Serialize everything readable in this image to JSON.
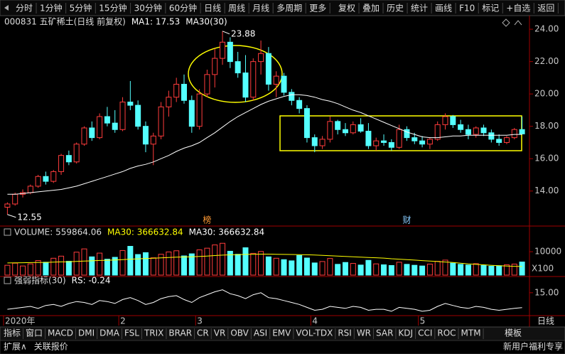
{
  "toolbar": {
    "left": [
      "分时",
      "1分钟",
      "5分钟",
      "15分钟",
      "30分钟",
      "60分钟",
      "日线",
      "周线",
      "月线",
      "多周期",
      "更多"
    ],
    "right": [
      "复权",
      "叠加",
      "历史",
      "统计",
      "画线",
      "F10",
      "标记",
      "+自选",
      "返回"
    ]
  },
  "tabs": [
    "指标",
    "窗口",
    "MACD",
    "DMI",
    "DMA",
    "FSL",
    "TRIX",
    "BRAR",
    "CR",
    "VR",
    "OBV",
    "ASI",
    "EMV",
    "VOL-TDX",
    "RSI",
    "WR",
    "SAR",
    "KDJ",
    "CCI",
    "ROC",
    "MTM"
  ],
  "tab_right": "模板",
  "period": "日线",
  "status": {
    "left": [
      "扩展∧",
      "关联报价"
    ],
    "right": "新用户福利专享"
  },
  "chart_data": [
    {
      "type": "candlestick",
      "title": "000831 五矿稀土(日线 前复权)",
      "annotations": [
        "MA1: 17.53"
      ],
      "up_color": "#ff3c3c",
      "down_color": "#54ffff",
      "categories": [
        "2020年",
        null,
        null,
        null,
        null,
        null,
        null,
        null,
        null,
        null,
        null,
        null,
        null,
        null,
        null,
        "2",
        null,
        null,
        null,
        null,
        null,
        null,
        null,
        null,
        null,
        "3",
        null,
        null,
        null,
        null,
        null,
        null,
        null,
        null,
        null,
        null,
        null,
        null,
        null,
        null,
        "4",
        null,
        null,
        null,
        null,
        null,
        null,
        null,
        null,
        null,
        null,
        null,
        null,
        null,
        "5",
        null,
        null,
        null,
        null,
        null,
        null,
        null,
        null,
        null,
        null,
        null,
        null,
        null
      ],
      "open": [
        13.0,
        13.2,
        13.8,
        13.9,
        14.3,
        14.9,
        14.6,
        15.2,
        16.2,
        15.8,
        16.9,
        17.9,
        17.3,
        18.6,
        18.2,
        17.8,
        19.5,
        19.3,
        18.0,
        16.9,
        17.4,
        19.2,
        19.8,
        20.6,
        19.6,
        18.0,
        20.0,
        21.2,
        22.2,
        23.2,
        22.0,
        21.3,
        19.8,
        22.0,
        22.5,
        20.6,
        21.1,
        20.1,
        19.6,
        19.1,
        17.3,
        16.8,
        17.2,
        18.3,
        17.8,
        17.6,
        18.1,
        17.7,
        16.8,
        17.1,
        17.0,
        16.7,
        17.8,
        17.3,
        17.1,
        16.9,
        17.2,
        18.1,
        18.6,
        18.1,
        17.8,
        17.5,
        17.9,
        17.6,
        17.2,
        17.0,
        17.3,
        17.8
      ],
      "high": [
        13.3,
        13.9,
        14.1,
        14.4,
        15.0,
        15.2,
        15.3,
        16.3,
        16.5,
        17.0,
        18.0,
        18.3,
        18.8,
        19.2,
        19.0,
        19.8,
        20.8,
        19.6,
        18.3,
        17.6,
        19.5,
        20.2,
        21.0,
        21.2,
        19.9,
        20.3,
        21.5,
        22.8,
        23.88,
        23.5,
        22.6,
        22.4,
        22.2,
        23.3,
        22.9,
        21.4,
        21.3,
        20.3,
        19.8,
        19.3,
        17.5,
        17.4,
        18.6,
        18.4,
        18.2,
        18.3,
        18.5,
        18.2,
        17.3,
        17.5,
        17.2,
        18.1,
        18.0,
        17.6,
        17.4,
        17.3,
        18.3,
        18.8,
        18.7,
        18.4,
        18.1,
        18.0,
        18.1,
        17.8,
        17.5,
        17.4,
        17.9,
        18.6
      ],
      "low": [
        12.55,
        13.1,
        13.6,
        13.8,
        14.2,
        14.4,
        14.5,
        15.0,
        15.6,
        15.7,
        16.8,
        17.1,
        17.2,
        18.0,
        17.6,
        17.7,
        19.0,
        17.8,
        16.4,
        15.6,
        17.2,
        18.6,
        19.5,
        19.4,
        17.6,
        17.8,
        19.8,
        20.4,
        21.8,
        21.6,
        21.0,
        19.5,
        19.6,
        21.2,
        20.2,
        19.8,
        19.9,
        19.3,
        18.8,
        17.0,
        16.4,
        16.6,
        17.0,
        17.5,
        17.4,
        17.5,
        17.6,
        16.6,
        16.5,
        16.8,
        16.5,
        16.6,
        17.1,
        16.9,
        16.7,
        16.6,
        17.1,
        17.8,
        17.9,
        17.6,
        17.2,
        17.3,
        17.4,
        17.0,
        16.8,
        16.9,
        17.2,
        17.5
      ],
      "close": [
        13.2,
        13.8,
        13.9,
        14.3,
        14.9,
        14.6,
        15.2,
        16.2,
        15.8,
        16.9,
        17.9,
        17.3,
        18.6,
        18.2,
        17.8,
        19.5,
        19.3,
        18.0,
        16.9,
        17.4,
        19.2,
        19.8,
        20.6,
        19.6,
        18.0,
        20.0,
        21.2,
        22.2,
        23.2,
        22.0,
        21.3,
        19.8,
        22.0,
        22.5,
        20.6,
        21.1,
        20.1,
        19.6,
        19.1,
        17.3,
        16.8,
        17.2,
        18.3,
        17.8,
        17.6,
        18.1,
        17.7,
        16.8,
        17.1,
        17.0,
        16.7,
        17.8,
        17.3,
        17.1,
        16.9,
        17.2,
        18.1,
        18.6,
        18.1,
        17.8,
        17.5,
        17.9,
        17.6,
        17.2,
        17.0,
        17.3,
        17.8,
        17.53
      ],
      "series": [
        {
          "name": "MA30(30)",
          "color": "#ffffff",
          "values": [
            13.8,
            13.8,
            13.85,
            13.9,
            13.95,
            14.0,
            14.05,
            14.1,
            14.2,
            14.3,
            14.45,
            14.6,
            14.75,
            14.9,
            15.05,
            15.2,
            15.4,
            15.55,
            15.65,
            15.8,
            16.0,
            16.2,
            16.45,
            16.65,
            16.8,
            17.0,
            17.3,
            17.6,
            17.95,
            18.3,
            18.6,
            18.85,
            19.1,
            19.35,
            19.55,
            19.7,
            19.85,
            19.95,
            19.95,
            19.9,
            19.8,
            19.65,
            19.55,
            19.4,
            19.2,
            19.0,
            18.85,
            18.65,
            18.45,
            18.25,
            18.05,
            17.85,
            17.65,
            17.5,
            17.35,
            17.3,
            17.3,
            17.35,
            17.4,
            17.4,
            17.45,
            17.45,
            17.45,
            17.45,
            17.45,
            17.45,
            17.5,
            17.5
          ]
        }
      ],
      "markers": [
        {
          "label": "榜",
          "index": 26,
          "color": "#ff9933"
        },
        {
          "label": "财",
          "index": 52,
          "color": "#88ccff"
        }
      ],
      "ylim": [
        12.1,
        24.4
      ],
      "yticks": [
        {
          "value": 14,
          "label": "14.00"
        },
        {
          "value": 16,
          "label": "16.00"
        },
        {
          "value": 18,
          "label": "18.00"
        },
        {
          "value": 20,
          "label": "20.00"
        },
        {
          "value": 22,
          "label": "22.00"
        },
        {
          "value": 24,
          "label": "24.00"
        }
      ]
    },
    {
      "type": "bar",
      "title": "VOLUME: 559864.06",
      "annotations": [
        "MA30: 366632.84"
      ],
      "unit": "X100",
      "values": [
        4200,
        5100,
        3900,
        4800,
        6200,
        5500,
        7200,
        8100,
        5900,
        9800,
        11200,
        7800,
        9400,
        6800,
        7600,
        10500,
        12300,
        8800,
        9600,
        7400,
        8900,
        9900,
        10400,
        8200,
        9100,
        10800,
        11500,
        12900,
        13600,
        10200,
        8900,
        11700,
        9300,
        10100,
        7800,
        7200,
        6600,
        6100,
        8400,
        7300,
        5200,
        5800,
        7100,
        4600,
        5400,
        5000,
        4300,
        6300,
        4800,
        4400,
        4100,
        5500,
        4600,
        4200,
        3900,
        4700,
        5900,
        6400,
        5100,
        4600,
        4300,
        4900,
        4100,
        3800,
        4000,
        4400,
        4700,
        5598.64
      ],
      "series": [
        {
          "name": "MA30: 366632.84",
          "color": "#ffff00",
          "values": [
            5200,
            5250,
            5300,
            5350,
            5400,
            5450,
            5550,
            5650,
            5700,
            5850,
            6000,
            6100,
            6250,
            6350,
            6450,
            6600,
            6800,
            6950,
            7100,
            7200,
            7350,
            7500,
            7650,
            7750,
            7850,
            8000,
            8150,
            8350,
            8550,
            8650,
            8750,
            8850,
            8900,
            8950,
            8950,
            8900,
            8850,
            8800,
            8750,
            8700,
            8600,
            8450,
            8300,
            8150,
            8000,
            7850,
            7700,
            7550,
            7400,
            7250,
            7000,
            6800,
            6600,
            6400,
            6200,
            6000,
            5800,
            5600,
            5400,
            5100,
            4800,
            4600,
            4400,
            4200,
            4050,
            3900,
            3780,
            3666.33
          ]
        }
      ],
      "ylim": [
        0,
        15800
      ],
      "yticks": [
        10000
      ]
    },
    {
      "type": "line",
      "title": "强弱指标(30)",
      "series": [
        {
          "name": "RS: -0.24",
          "color": "#ffffff",
          "values": [
            -2,
            -1,
            0,
            1,
            -1,
            2,
            3,
            1,
            4,
            6,
            5,
            3,
            7,
            6,
            4,
            8,
            10,
            7,
            3,
            5,
            9,
            11,
            12,
            8,
            5,
            10,
            13,
            16,
            18,
            14,
            12,
            9,
            13,
            15,
            10,
            9,
            7,
            5,
            3,
            0,
            -3,
            -2,
            1,
            0,
            -1,
            1,
            0,
            -3,
            -2,
            -2,
            -4,
            0,
            -1,
            -2,
            -4,
            -3,
            1,
            4,
            2,
            0,
            -1,
            1,
            0,
            -2,
            -3,
            -2,
            -1,
            -0.24
          ]
        }
      ],
      "ylim": [
        -7,
        28
      ],
      "yticks": [
        {
          "value": 15,
          "label": "15.00"
        }
      ]
    }
  ]
}
